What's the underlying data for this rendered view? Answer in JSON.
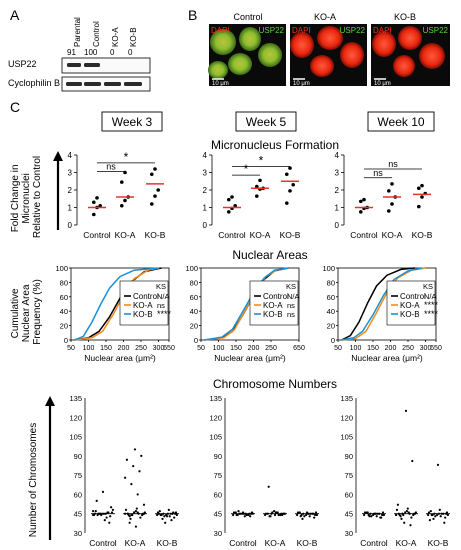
{
  "panels": {
    "a": "A",
    "b": "B",
    "c": "C"
  },
  "western_blot": {
    "lanes": [
      "Parental",
      "Control",
      "KO-A",
      "KO-B"
    ],
    "quant": [
      "91",
      "100",
      "0",
      "0"
    ],
    "rows": [
      "USP22",
      "Cyclophilin B"
    ]
  },
  "micrographs": [
    {
      "title": "Control",
      "dapi": "DAPI",
      "usp22": "USP22",
      "scale": "10 μm"
    },
    {
      "title": "KO-A",
      "dapi": "DAPI",
      "usp22": "USP22",
      "scale": "10 μm"
    },
    {
      "title": "KO-B",
      "dapi": "DAPI",
      "usp22": "USP22",
      "scale": "10 μm"
    }
  ],
  "weeks": [
    "Week 3",
    "Week 5",
    "Week 10"
  ],
  "colors": {
    "control": "#000000",
    "ko_a": "#f28c1c",
    "ko_b": "#1a8fd6",
    "mean": "#e8322e",
    "dapi": "#ff2a1a",
    "usp22": "#59d33a"
  },
  "chart_data": [
    {
      "type": "scatter",
      "title": "Micronucleus Formation",
      "ylabel": "Fold Change in Micronuclei Relative to Control",
      "ylim": [
        0,
        4
      ],
      "yticks": [
        "0",
        "1",
        "2",
        "3",
        "4"
      ],
      "categories": [
        "Control",
        "KO-A",
        "KO-B"
      ],
      "panels": [
        {
          "week": "Week 3",
          "points": [
            [
              0.6,
              1.0,
              1.1,
              1.3,
              1.55
            ],
            [
              1.1,
              1.4,
              1.6,
              2.45,
              3.0
            ],
            [
              1.2,
              1.65,
              2.0,
              2.9,
              3.2
            ]
          ],
          "means": [
            1.0,
            1.6,
            2.35
          ],
          "sig": [
            {
              "from": 0,
              "to": 1,
              "label": "ns",
              "y": 3.05
            },
            {
              "from": 0,
              "to": 2,
              "label": "*",
              "y": 3.55
            }
          ]
        },
        {
          "week": "Week 5",
          "points": [
            [
              0.75,
              0.95,
              1.1,
              1.45,
              1.6
            ],
            [
              1.65,
              2.05,
              2.1,
              2.2,
              2.55
            ],
            [
              1.25,
              1.95,
              2.3,
              2.9,
              3.25
            ]
          ],
          "means": [
            1.0,
            2.1,
            2.5
          ],
          "sig": [
            {
              "from": 0,
              "to": 1,
              "label": "*",
              "y": 2.85
            },
            {
              "from": 0,
              "to": 2,
              "label": "*",
              "y": 3.35
            }
          ]
        },
        {
          "week": "Week 10",
          "points": [
            [
              0.75,
              0.95,
              1.0,
              1.35,
              1.45
            ],
            [
              0.8,
              1.2,
              1.6,
              1.95,
              2.35
            ],
            [
              1.05,
              1.6,
              1.8,
              2.1,
              2.25
            ]
          ],
          "means": [
            1.0,
            1.6,
            1.75
          ],
          "sig": [
            {
              "from": 0,
              "to": 1,
              "label": "ns",
              "y": 2.7
            },
            {
              "from": 0,
              "to": 2,
              "label": "ns",
              "y": 3.2
            }
          ]
        }
      ]
    },
    {
      "type": "line",
      "title": "Nuclear Areas",
      "ylabel": "Cumulative Nuclear Area Frequency (%)",
      "xlabel": "Nuclear area (μm²)",
      "xticks": [
        "50",
        "100",
        "150",
        "200",
        "250",
        "300",
        "650"
      ],
      "xticks_panel2": [
        "50",
        "100",
        "150",
        "200",
        "250",
        "650"
      ],
      "ylim": [
        0,
        100
      ],
      "yticks": [
        "0",
        "20",
        "40",
        "60",
        "80",
        "100"
      ],
      "legend_header": "KS",
      "panels": [
        {
          "week": "Week 3",
          "ks": [
            "N/A",
            "ns",
            "****"
          ],
          "curves": {
            "control": [
              [
                60,
                0
              ],
              [
                100,
                3
              ],
              [
                130,
                12
              ],
              [
                160,
                32
              ],
              [
                190,
                58
              ],
              [
                220,
                80
              ],
              [
                260,
                95
              ],
              [
                300,
                99
              ],
              [
                400,
                100
              ]
            ],
            "ko_a": [
              [
                60,
                0
              ],
              [
                110,
                3
              ],
              [
                140,
                12
              ],
              [
                170,
                35
              ],
              [
                200,
                62
              ],
              [
                230,
                85
              ],
              [
                270,
                97
              ],
              [
                320,
                100
              ]
            ],
            "ko_b": [
              [
                60,
                0
              ],
              [
                85,
                5
              ],
              [
                110,
                25
              ],
              [
                135,
                50
              ],
              [
                160,
                72
              ],
              [
                190,
                88
              ],
              [
                230,
                97
              ],
              [
                300,
                100
              ]
            ]
          }
        },
        {
          "week": "Week 5",
          "ks": [
            "N/A",
            "ns",
            "ns"
          ],
          "curves": {
            "control": [
              [
                60,
                0
              ],
              [
                110,
                3
              ],
              [
                140,
                12
              ],
              [
                170,
                35
              ],
              [
                200,
                62
              ],
              [
                230,
                84
              ],
              [
                260,
                96
              ],
              [
                300,
                100
              ]
            ],
            "ko_a": [
              [
                60,
                0
              ],
              [
                115,
                3
              ],
              [
                145,
                14
              ],
              [
                175,
                40
              ],
              [
                205,
                68
              ],
              [
                235,
                88
              ],
              [
                265,
                97
              ],
              [
                300,
                100
              ]
            ],
            "ko_b": [
              [
                60,
                0
              ],
              [
                110,
                4
              ],
              [
                140,
                15
              ],
              [
                170,
                40
              ],
              [
                200,
                66
              ],
              [
                230,
                86
              ],
              [
                260,
                97
              ],
              [
                300,
                100
              ]
            ]
          }
        },
        {
          "week": "Week 10",
          "ks": [
            "N/A",
            "****",
            "****"
          ],
          "curves": {
            "control": [
              [
                60,
                0
              ],
              [
                85,
                6
              ],
              [
                110,
                25
              ],
              [
                135,
                52
              ],
              [
                160,
                75
              ],
              [
                190,
                90
              ],
              [
                230,
                98
              ],
              [
                270,
                100
              ]
            ],
            "ko_a": [
              [
                60,
                0
              ],
              [
                100,
                2
              ],
              [
                130,
                12
              ],
              [
                160,
                38
              ],
              [
                190,
                66
              ],
              [
                220,
                86
              ],
              [
                260,
                97
              ],
              [
                300,
                100
              ]
            ],
            "ko_b": [
              [
                60,
                0
              ],
              [
                95,
                3
              ],
              [
                120,
                12
              ],
              [
                150,
                35
              ],
              [
                180,
                62
              ],
              [
                210,
                84
              ],
              [
                250,
                96
              ],
              [
                290,
                100
              ]
            ]
          }
        }
      ],
      "series": [
        {
          "name": "Control"
        },
        {
          "name": "KO-A"
        },
        {
          "name": "KO-B"
        }
      ]
    },
    {
      "type": "scatter",
      "title": "Chromosome Numbers",
      "ylabel": "Number of Chromosomes",
      "ylim": [
        30,
        135
      ],
      "yticks": [
        "30",
        "45",
        "60",
        "75",
        "90",
        "105",
        "120",
        "135"
      ],
      "categories": [
        "Control",
        "KO-A",
        "KO-B"
      ],
      "panels": [
        {
          "week": "Week 3",
          "points": [
            [
              44,
              45,
              45,
              46,
              44,
              45,
              43,
              47,
              45,
              46,
              44,
              45,
              42,
              48,
              45,
              40,
              50,
              55,
              62,
              38,
              45,
              44,
              46,
              47
            ],
            [
              45,
              44,
              46,
              45,
              43,
              47,
              44,
              45,
              46,
              42,
              48,
              44,
              45,
              46,
              41,
              49,
              45,
              44,
              95,
              90,
              87,
              82,
              78,
              73,
              68,
              60,
              52,
              38,
              35,
              44,
              45,
              46
            ],
            [
              44,
              45,
              43,
              46,
              44,
              45,
              42,
              47,
              44,
              45,
              46,
              43,
              45,
              44,
              41,
              48,
              45,
              44,
              43,
              46,
              45,
              38,
              40
            ]
          ]
        },
        {
          "week": "Week 5",
          "points": [
            [
              44,
              45,
              45,
              46,
              44,
              45,
              43,
              46,
              45,
              44,
              46,
              45,
              44,
              45,
              47,
              43,
              45,
              44,
              46,
              45
            ],
            [
              44,
              45,
              46,
              45,
              43,
              46,
              44,
              45,
              47,
              44,
              45,
              46,
              44,
              45,
              43,
              46,
              45,
              66,
              44,
              45
            ],
            [
              44,
              45,
              43,
              46,
              44,
              45,
              42,
              46,
              44,
              45,
              46,
              43,
              45,
              44,
              41,
              45,
              44,
              43,
              46,
              45
            ]
          ]
        },
        {
          "week": "Week 10",
          "points": [
            [
              44,
              45,
              43,
              46,
              44,
              45,
              42,
              46,
              44,
              45,
              46,
              43,
              45,
              44,
              43,
              45,
              44,
              46,
              45,
              42
            ],
            [
              44,
              45,
              46,
              45,
              43,
              47,
              44,
              45,
              46,
              42,
              48,
              44,
              45,
              46,
              41,
              49,
              45,
              44,
              125,
              86,
              52,
              38,
              36,
              44,
              45
            ],
            [
              44,
              45,
              43,
              46,
              44,
              45,
              42,
              47,
              44,
              45,
              46,
              43,
              45,
              44,
              41,
              48,
              45,
              44,
              83,
              38,
              40
            ]
          ]
        }
      ]
    }
  ]
}
